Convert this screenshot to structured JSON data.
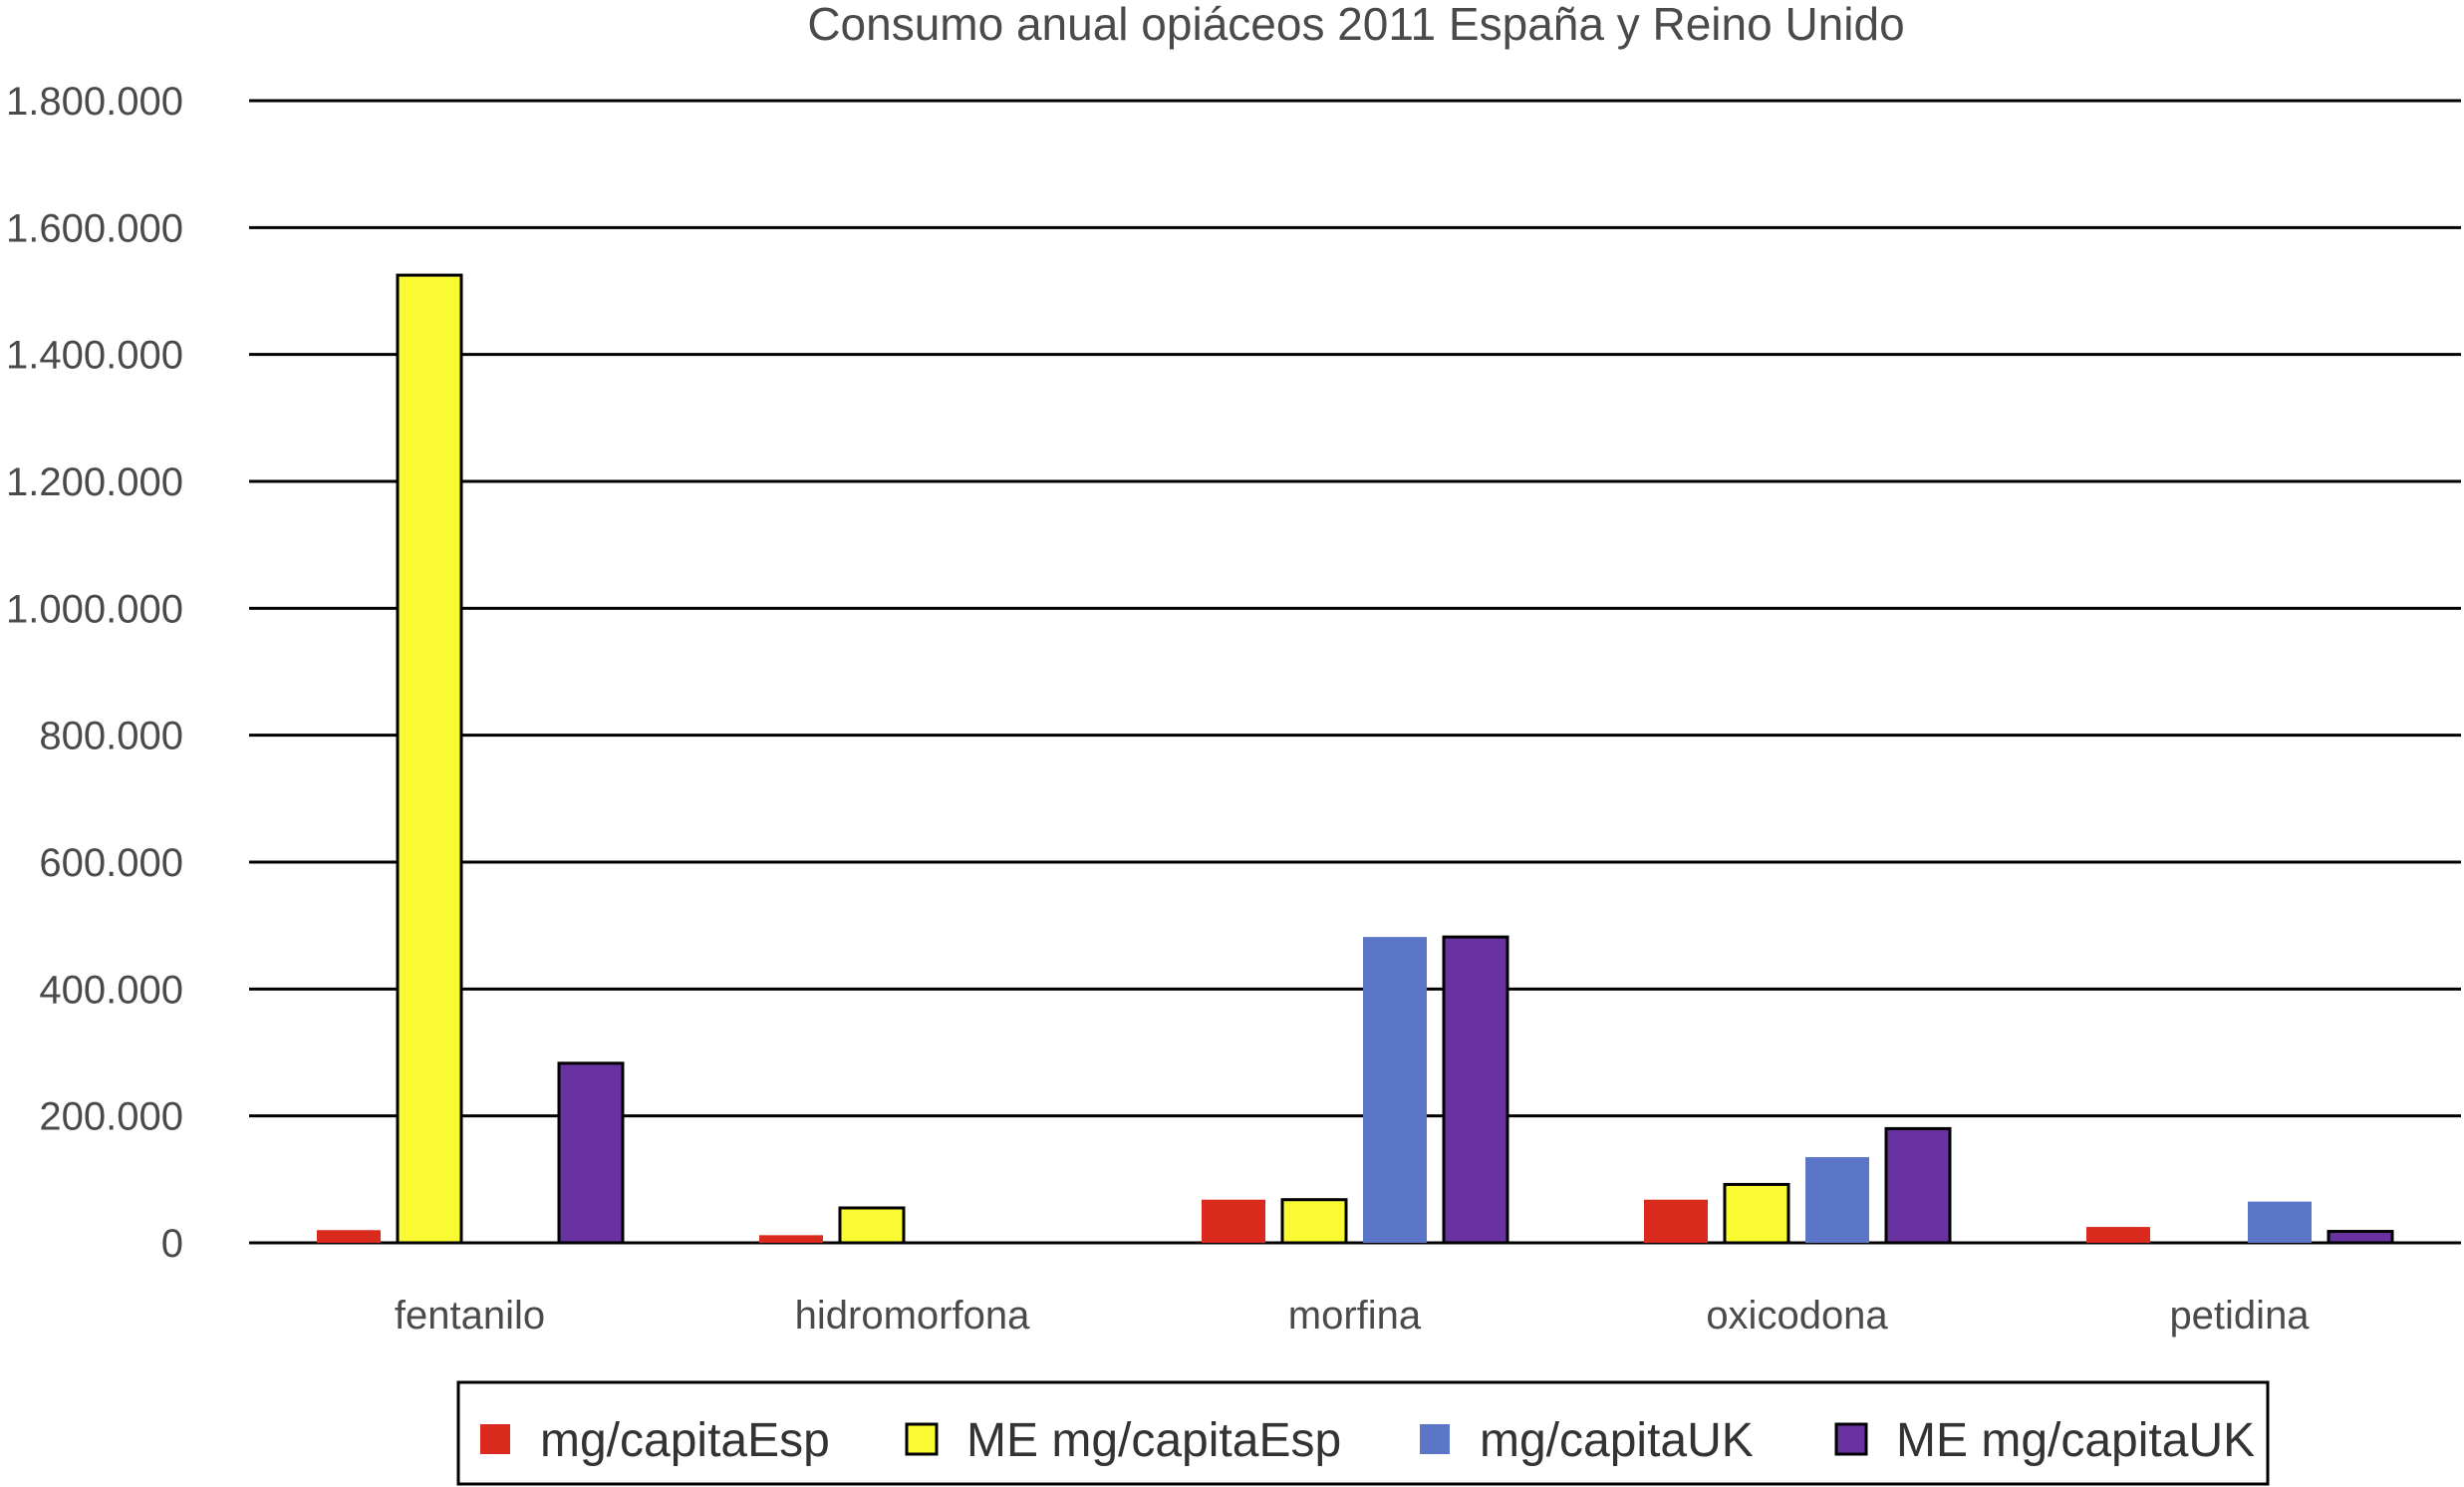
{
  "chart_data": {
    "type": "bar",
    "title": "Consumo anual opiáceos 2011 España y Reino Unido",
    "xlabel": "",
    "ylabel": "",
    "categories": [
      "fentanilo",
      "hidromorfona",
      "morfina",
      "oxicodona",
      "petidina"
    ],
    "ylim": [
      0,
      1800000
    ],
    "yticks": [
      0,
      200000,
      400000,
      600000,
      800000,
      1000000,
      1200000,
      1400000,
      1600000,
      1800000
    ],
    "ytick_labels": [
      "0",
      "200.000",
      "400.000",
      "600.000",
      "800.000",
      "1.000.000",
      "1.200.000",
      "1.400.000",
      "1.600.000",
      "1.800.000"
    ],
    "grid": true,
    "legend_position": "bottom",
    "series": [
      {
        "name": "mg/capitaEsp",
        "color": "#d92a1c",
        "outline": false,
        "values": [
          20000,
          12000,
          68000,
          68000,
          25000
        ]
      },
      {
        "name": "ME mg/capitaEsp",
        "color": "#fafa32",
        "outline": true,
        "values": [
          1525000,
          55000,
          68000,
          92000,
          0
        ]
      },
      {
        "name": "mg/capitaUK",
        "color": "#5b76c6",
        "outline": false,
        "values": [
          0,
          0,
          482000,
          135000,
          65000
        ]
      },
      {
        "name": "ME mg/capitaUK",
        "color": "#6832a0",
        "outline": true,
        "values": [
          283000,
          0,
          482000,
          180000,
          18000
        ]
      }
    ]
  }
}
